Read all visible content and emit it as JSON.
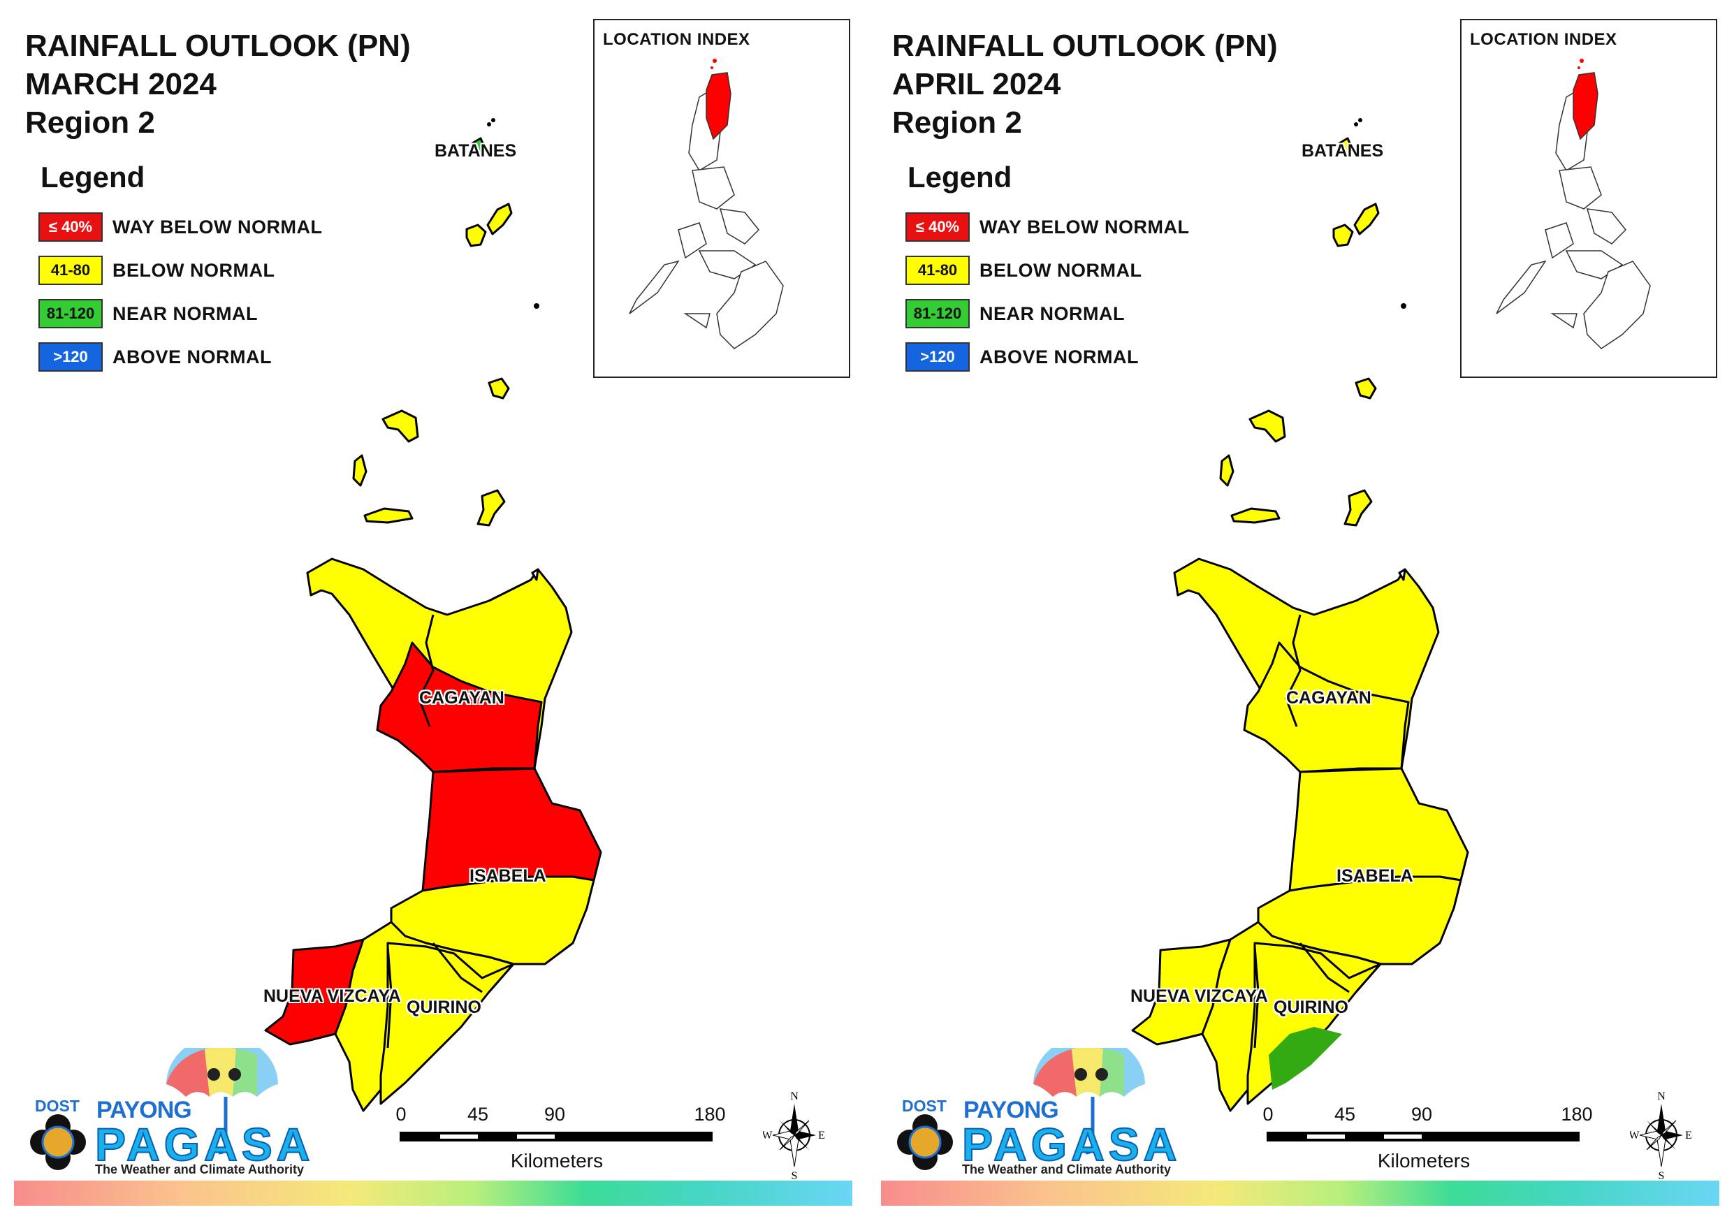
{
  "panels": [
    {
      "title_line1": "RAINFALL OUTLOOK (PN)",
      "title_line2": "MARCH 2024",
      "title_line3": "Region 2",
      "provinces": {
        "batanes": "BATANES",
        "cagayan": "CAGAYAN",
        "isabela": "ISABELA",
        "nueva_vizcaya": "NUEVA VIZCAYA",
        "quirino": "QUIRINO"
      },
      "map_colors": {
        "batanes": "#33cc33",
        "islands": "#ffff00",
        "cagayan_north": "#ffff00",
        "cagayan_south": "#ff0000",
        "isabela_north": "#ff0000",
        "isabela_south": "#ffff00",
        "nueva_vizcaya_west": "#ff0000",
        "nueva_vizcaya_east": "#ffff00",
        "quirino": "#ffff00",
        "green_patch": "none"
      }
    },
    {
      "title_line1": "RAINFALL OUTLOOK (PN)",
      "title_line2": "APRIL 2024",
      "title_line3": "Region 2",
      "provinces": {
        "batanes": "BATANES",
        "cagayan": "CAGAYAN",
        "isabela": "ISABELA",
        "nueva_vizcaya": "NUEVA VIZCAYA",
        "quirino": "QUIRINO"
      },
      "map_colors": {
        "batanes": "#ffff00",
        "islands": "#ffff00",
        "cagayan_north": "#ffff00",
        "cagayan_south": "#ffff00",
        "isabela_north": "#ffff00",
        "isabela_south": "#ffff00",
        "nueva_vizcaya_west": "#ffff00",
        "nueva_vizcaya_east": "#ffff00",
        "quirino": "#ffff00",
        "green_patch": "#33aa11"
      }
    }
  ],
  "legend": {
    "heading": "Legend",
    "items": [
      {
        "range": "≤ 40%",
        "label": "WAY BELOW NORMAL",
        "color": "#e81010",
        "text_color": "#ffffff"
      },
      {
        "range": "41-80",
        "label": "BELOW NORMAL",
        "color": "#ffff00",
        "text_color": "#111111"
      },
      {
        "range": "81-120",
        "label": "NEAR NORMAL",
        "color": "#33cc33",
        "text_color": "#111111"
      },
      {
        "range": ">120",
        "label": "ABOVE NORMAL",
        "color": "#1565e0",
        "text_color": "#ffffff"
      }
    ]
  },
  "inset": {
    "title": "LOCATION INDEX",
    "highlight_color": "#ff0000"
  },
  "scale": {
    "ticks": [
      "0",
      "45",
      "90",
      "180"
    ],
    "unit": "Kilometers"
  },
  "compass": {
    "n": "N",
    "s": "S",
    "e": "E",
    "w": "W"
  },
  "logo": {
    "dost": "DOST",
    "payong": "PAYONG",
    "pagasa": "PAGASA",
    "tagline": "The Weather and Climate Authority"
  }
}
